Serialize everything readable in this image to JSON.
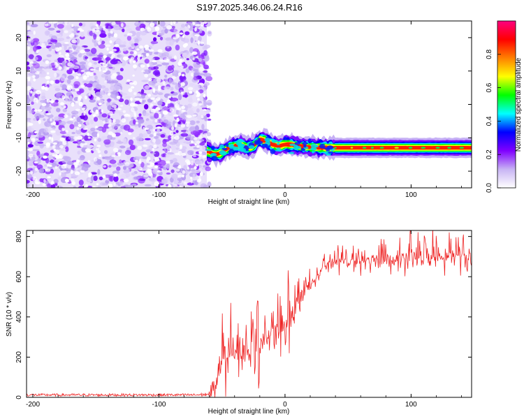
{
  "title": "S197.2025.346.06.24.R16",
  "chart_data": [
    {
      "type": "heatmap",
      "xlabel": "Height of straight line (km)",
      "ylabel": "Frequency (Hz)",
      "xlim": [
        -205,
        148
      ],
      "ylim": [
        -25,
        25
      ],
      "xticks": [
        -200,
        -100,
        0,
        100
      ],
      "yticks": [
        20,
        10,
        0,
        -10,
        -20
      ],
      "noise_region_x": [
        -205,
        -62
      ],
      "signal_track": {
        "x": [
          -62,
          -55,
          -50,
          -45,
          -40,
          -35,
          -30,
          -25,
          -20,
          -15,
          -10,
          -5,
          0,
          5,
          10,
          20,
          30,
          40,
          60,
          80,
          100,
          120,
          148
        ],
        "frequency": [
          -14,
          -15,
          -14.5,
          -13,
          -12.5,
          -12,
          -13,
          -12.5,
          -10.5,
          -11,
          -12,
          -12.5,
          -12,
          -12,
          -12.5,
          -12.8,
          -13,
          -13,
          -13,
          -13,
          -13,
          -13,
          -13
        ]
      },
      "colorbar": {
        "label": "Normalized spectral amplitude",
        "range": [
          0,
          1
        ],
        "ticks": [
          0.0,
          0.2,
          0.4,
          0.6,
          0.8
        ],
        "tick_labels": [
          "0.0",
          "0.2",
          "0.4",
          "0.6",
          "0.8"
        ],
        "colors": [
          "#ffffff",
          "#c8b4f4",
          "#8000ff",
          "#0000ff",
          "#00ffff",
          "#00ff00",
          "#ffff00",
          "#ff8000",
          "#ff0000",
          "#ff0080"
        ]
      }
    },
    {
      "type": "line",
      "xlabel": "Height of straight line (km)",
      "ylabel": "SNR (10 * v/v)",
      "xlim": [
        -205,
        148
      ],
      "ylim": [
        0,
        830
      ],
      "xticks": [
        -200,
        -100,
        0,
        100
      ],
      "yticks": [
        0,
        200,
        400,
        600,
        800
      ],
      "color": "#ee2222",
      "series": [
        {
          "name": "SNR",
          "x": [
            -205,
            -150,
            -100,
            -70,
            -60,
            -55,
            -50,
            -45,
            -40,
            -35,
            -30,
            -25,
            -20,
            -15,
            -10,
            -5,
            0,
            5,
            10,
            15,
            20,
            25,
            30,
            35,
            40,
            50,
            60,
            80,
            100,
            120,
            148
          ],
          "mean": [
            12,
            12,
            12,
            12,
            15,
            70,
            170,
            200,
            215,
            230,
            200,
            250,
            270,
            290,
            310,
            330,
            350,
            390,
            480,
            520,
            560,
            600,
            630,
            660,
            670,
            680,
            680,
            680,
            690,
            695,
            700
          ],
          "spread": [
            8,
            8,
            8,
            8,
            15,
            120,
            170,
            160,
            180,
            180,
            160,
            160,
            170,
            170,
            160,
            170,
            180,
            160,
            100,
            80,
            60,
            60,
            50,
            50,
            60,
            60,
            70,
            80,
            90,
            100,
            110
          ]
        }
      ]
    }
  ]
}
